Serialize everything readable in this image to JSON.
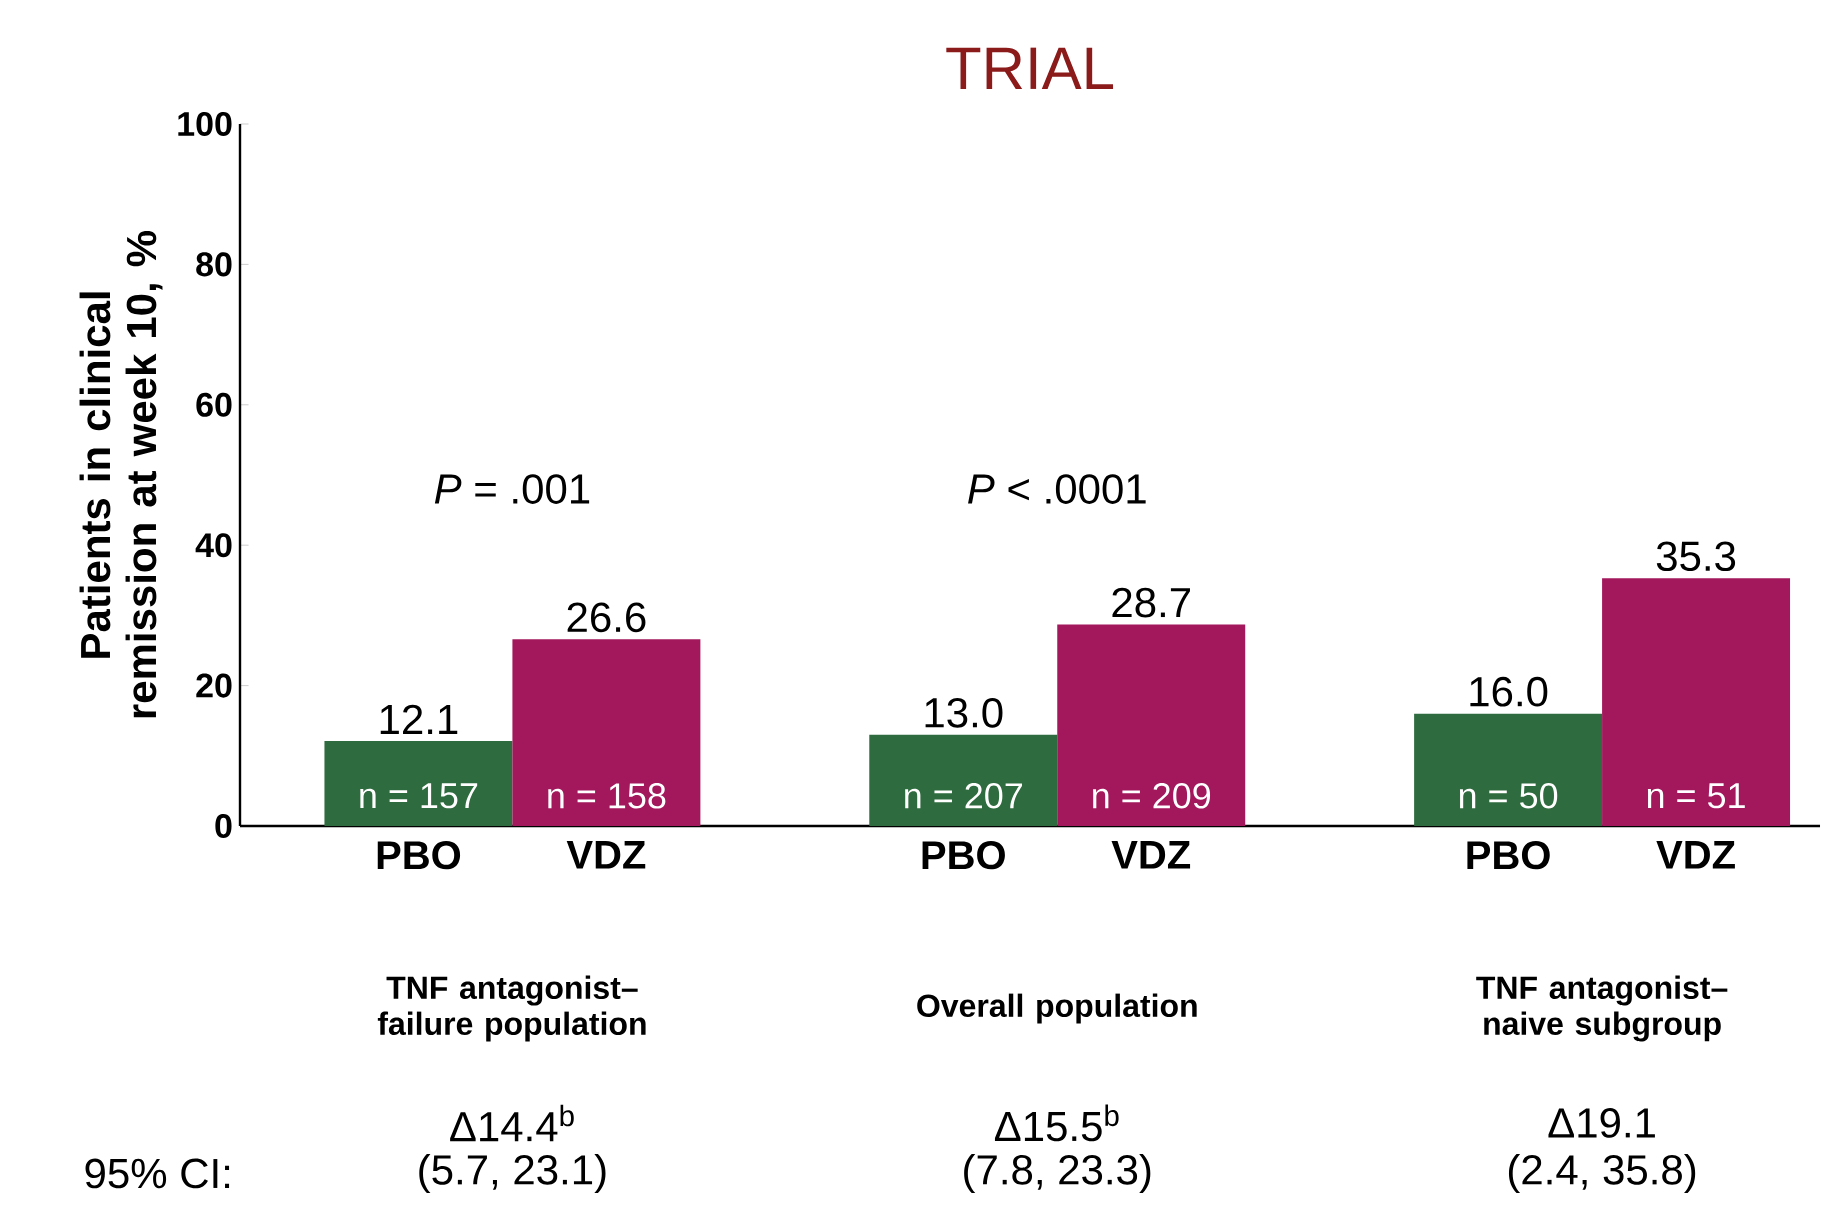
{
  "chart_data": {
    "type": "bar",
    "title": "TRIAL",
    "ylabel": "Patients in clinical remission at week 10, %",
    "categories": [
      "TNF antagonist–failure population",
      "Overall population",
      "TNF antagonist–naive subgroup"
    ],
    "series": [
      {
        "name": "PBO",
        "color": "#2e6b3e",
        "values": [
          12.1,
          13.0,
          16.0
        ],
        "value_labels": [
          "12.1",
          "13.0",
          "16.0"
        ]
      },
      {
        "name": "VDZ",
        "color": "#a3175c",
        "values": [
          26.6,
          28.7,
          35.3
        ],
        "value_labels": [
          "26.6",
          "28.7",
          "35.3"
        ]
      }
    ],
    "ylim": [
      0,
      100
    ],
    "yticks": [
      0,
      20,
      40,
      60,
      80,
      100
    ],
    "annotations": [
      "*P* = .001",
      "*P* < .0001",
      "n = 157",
      "n = 158",
      "n = 207",
      "n = 209",
      "n = 50",
      "n = 51",
      "95% CI:",
      "Δ14.4$^{b}$",
      "Δ15.5$^{b}$",
      "Δ19.1",
      "(5.7, 23.1)",
      "(7.8, 23.3)",
      "(2.4, 35.8)"
    ]
  }
}
